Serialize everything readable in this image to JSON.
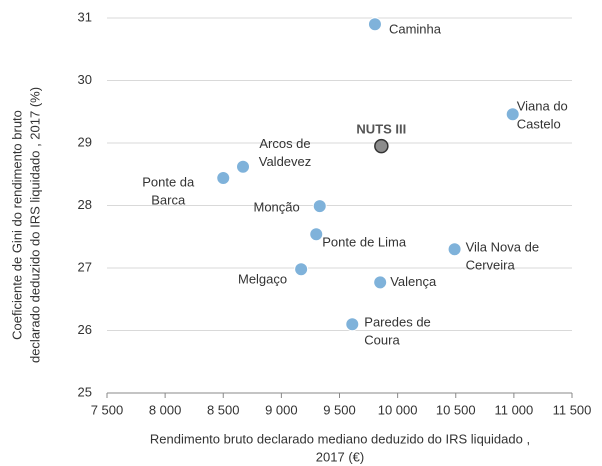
{
  "chart_data": {
    "type": "scatter",
    "x_label": [
      "Rendimento bruto declarado mediano deduzido do IRS liquidado ,",
      "2017 (€)"
    ],
    "y_label": [
      "Coeficiente de Gini do rendimento bruto",
      "declarado deduzido do IRS liquidado , 2017 (%)"
    ],
    "labels": [
      [
        "Caminha"
      ],
      [
        "Viana do",
        "Castelo"
      ],
      [
        "NUTS III"
      ],
      [
        "Arcos de",
        "Valdevez"
      ],
      [
        "Ponte da",
        "Barca"
      ],
      [
        "Monção"
      ],
      [
        "Ponte de Lima"
      ],
      [
        "Vila Nova de",
        "Cerveira"
      ],
      [
        "Melgaço"
      ],
      [
        "Valença"
      ],
      [
        "Paredes de",
        "Coura"
      ]
    ],
    "x": [
      9805,
      10990,
      9860,
      8670,
      8500,
      9330,
      9300,
      10490,
      9170,
      9850,
      9610
    ],
    "values": [
      30.9,
      29.46,
      28.95,
      28.62,
      28.44,
      27.99,
      27.54,
      27.3,
      26.98,
      26.77,
      26.1
    ],
    "point_colors": [
      "#7fb2da",
      "#7fb2da",
      "#8c8c8c",
      "#7fb2da",
      "#7fb2da",
      "#7fb2da",
      "#7fb2da",
      "#7fb2da",
      "#7fb2da",
      "#7fb2da",
      "#7fb2da"
    ],
    "xlim": [
      7500,
      11500
    ],
    "xticks": [
      {
        "value": 7500,
        "label": "7 500"
      },
      {
        "value": 8000,
        "label": "8 000"
      },
      {
        "value": 8500,
        "label": "8 500"
      },
      {
        "value": 9000,
        "label": "9 000"
      },
      {
        "value": 9500,
        "label": "9 500"
      },
      {
        "value": 10000,
        "label": "10 000"
      },
      {
        "value": 10500,
        "label": "10 500"
      },
      {
        "value": 11000,
        "label": "11 000"
      },
      {
        "value": 11500,
        "label": "11 500"
      }
    ],
    "ylim": [
      25,
      31
    ],
    "yticks": [
      25,
      26,
      27,
      28,
      29,
      30,
      31
    ],
    "grid": true
  }
}
